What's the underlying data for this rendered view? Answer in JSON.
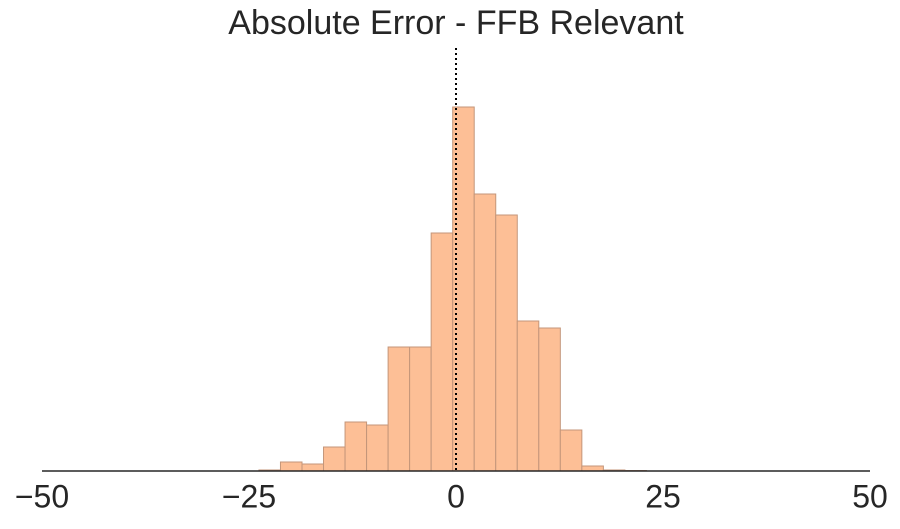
{
  "chart_data": {
    "type": "histogram",
    "title": "Absolute Error - FFB Relevant",
    "bins": [
      -23.8,
      -21.2,
      -18.6,
      -16.0,
      -13.4,
      -10.8,
      -8.2,
      -5.6,
      -3.0,
      -0.4,
      2.2,
      4.8,
      7.4,
      10.0,
      12.6,
      15.2,
      17.8,
      20.4,
      23.0
    ],
    "counts": [
      1,
      9,
      7,
      24,
      49,
      46,
      124,
      124,
      238,
      364,
      277,
      256,
      150,
      143,
      41,
      5,
      1,
      0.5
    ],
    "color": "#fdbf96",
    "edge_color": "#c4967a",
    "xlim": [
      -50,
      50
    ],
    "xticks": [
      {
        "value": -50,
        "label": "−50"
      },
      {
        "value": -25,
        "label": "−25"
      },
      0,
      25,
      50
    ],
    "ylim": [
      0,
      425
    ],
    "vline": 0,
    "grid": false
  }
}
